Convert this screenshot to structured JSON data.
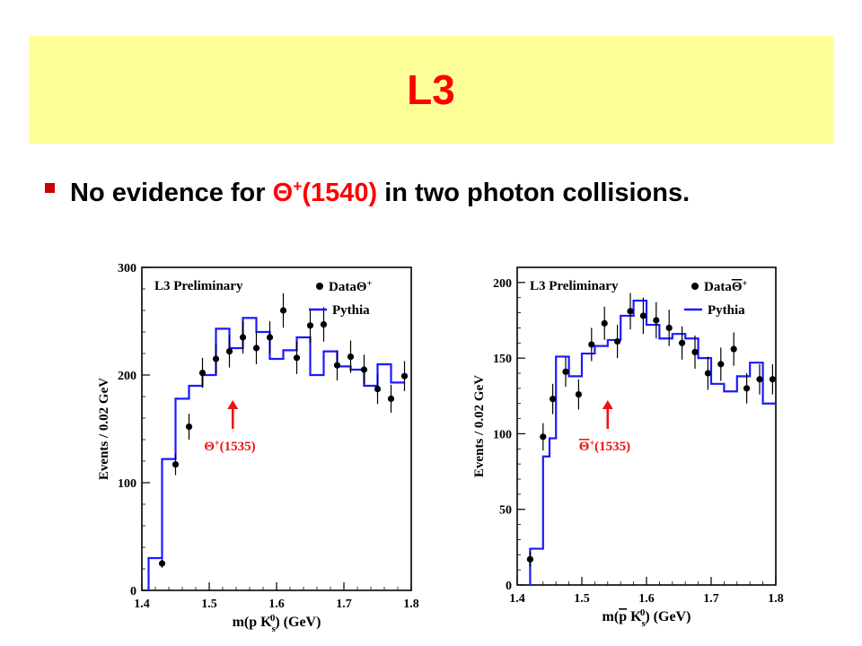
{
  "slide": {
    "title": "L3",
    "bullet": {
      "pre": "No evidence for ",
      "theta_symbol": "Θ",
      "theta_sup": "+",
      "theta_mass": "(1540)",
      "post": " in two photon collisions."
    }
  },
  "colors": {
    "title": "#ff0000",
    "banner": "#ffff99",
    "highlight": "#ff0000",
    "pythia": "#1a1aff",
    "arrow": "#ee1111",
    "data": "#000000"
  },
  "chart_data": [
    {
      "type": "histogram",
      "panel_label": "L3 Preliminary",
      "legend_data": "Data",
      "legend_data_symbol": "Θ",
      "legend_data_sup": "+",
      "legend_data_overbar": false,
      "legend_pythia": "Pythia",
      "ylabel": "Events / 0.02 GeV",
      "xlabel_pre": "m(",
      "xlabel_bar": "",
      "xlabel_rest": "p K",
      "xlabel_sub": "s",
      "xlabel_sup": "0",
      "xlabel_post": ") (GeV)",
      "xlim": [
        1.4,
        1.8
      ],
      "ylim": [
        0,
        300
      ],
      "yticks": [
        0,
        100,
        200,
        300
      ],
      "xticks": [
        1.4,
        1.5,
        1.6,
        1.7,
        1.8
      ],
      "annotation_symbol": "Θ",
      "annotation_sup": "+",
      "annotation_mass": "(1535)",
      "annotation_overbar": false,
      "annotation_x": 1.535,
      "pythia_bin_edges": [
        1.41,
        1.43,
        1.45,
        1.47,
        1.49,
        1.51,
        1.53,
        1.55,
        1.57,
        1.59,
        1.61,
        1.63,
        1.65,
        1.67,
        1.69,
        1.71,
        1.73,
        1.75,
        1.77,
        1.79
      ],
      "pythia_values": [
        30,
        122,
        178,
        190,
        200,
        243,
        225,
        253,
        240,
        215,
        223,
        235,
        200,
        222,
        208,
        205,
        190,
        210,
        193
      ],
      "data_x": [
        1.43,
        1.45,
        1.47,
        1.49,
        1.51,
        1.53,
        1.55,
        1.57,
        1.59,
        1.61,
        1.63,
        1.65,
        1.67,
        1.69,
        1.71,
        1.73,
        1.75,
        1.77,
        1.79
      ],
      "data_y": [
        25,
        117,
        152,
        202,
        215,
        222,
        235,
        225,
        235,
        260,
        216,
        246,
        247,
        209,
        217,
        205,
        187,
        178,
        199
      ],
      "data_err": [
        4,
        10,
        12,
        14,
        14,
        15,
        15,
        15,
        15,
        16,
        15,
        16,
        16,
        14,
        15,
        14,
        14,
        13,
        14
      ]
    },
    {
      "type": "histogram",
      "panel_label": "L3 Preliminary",
      "legend_data": "Data",
      "legend_data_symbol": "Θ",
      "legend_data_sup": "+",
      "legend_data_overbar": true,
      "legend_pythia": "Pythia",
      "ylabel": "Events / 0.02 GeV",
      "xlabel_pre": "m(",
      "xlabel_bar": "p",
      "xlabel_rest": " K",
      "xlabel_sub": "s",
      "xlabel_sup": "0",
      "xlabel_post": ") (GeV)",
      "xlim": [
        1.4,
        1.8
      ],
      "ylim": [
        0,
        210
      ],
      "yticks": [
        0,
        50,
        100,
        150,
        200
      ],
      "xticks": [
        1.4,
        1.5,
        1.6,
        1.7,
        1.8
      ],
      "annotation_symbol": "Θ",
      "annotation_sup": "+",
      "annotation_mass": "(1535)",
      "annotation_overbar": true,
      "annotation_x": 1.54,
      "pythia_bin_edges": [
        1.42,
        1.43,
        1.44,
        1.45,
        1.46,
        1.47,
        1.48,
        1.49,
        1.5,
        1.51,
        1.52,
        1.53,
        1.54,
        1.55,
        1.56,
        1.57,
        1.58,
        1.59,
        1.6,
        1.61,
        1.62,
        1.63,
        1.64,
        1.65,
        1.66,
        1.67,
        1.68,
        1.69,
        1.7,
        1.71,
        1.72,
        1.73,
        1.74,
        1.75,
        1.76,
        1.77,
        1.78,
        1.79,
        1.8
      ],
      "pythia_values": [
        24,
        24,
        85,
        97,
        151,
        151,
        138,
        138,
        153,
        153,
        158,
        158,
        162,
        162,
        178,
        178,
        188,
        188,
        172,
        172,
        163,
        163,
        166,
        166,
        163,
        163,
        150,
        150,
        133,
        133,
        128,
        128,
        138,
        138,
        147,
        147,
        120,
        120
      ],
      "data_x": [
        1.42,
        1.44,
        1.455,
        1.475,
        1.495,
        1.515,
        1.535,
        1.555,
        1.575,
        1.595,
        1.615,
        1.635,
        1.655,
        1.675,
        1.695,
        1.715,
        1.735,
        1.755,
        1.775,
        1.795
      ],
      "data_y": [
        17,
        98,
        123,
        141,
        126,
        159,
        173,
        161,
        181,
        178,
        175,
        170,
        160,
        154,
        140,
        146,
        156,
        130,
        136,
        136
      ],
      "data_err": [
        5,
        9,
        10,
        10,
        10,
        11,
        11,
        11,
        12,
        12,
        12,
        12,
        11,
        11,
        11,
        11,
        11,
        10,
        10,
        10
      ]
    }
  ]
}
